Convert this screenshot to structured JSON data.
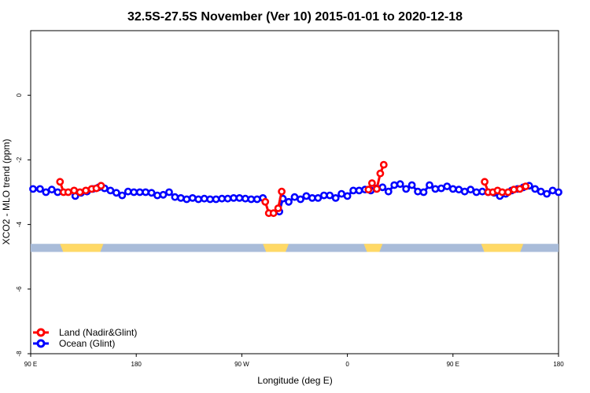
{
  "chart_data": {
    "type": "line",
    "title": "32.5S-27.5S November (Ver 10)   2015-01-01 to 2020-12-18",
    "xlabel": "Longitude (deg E)",
    "ylabel": "XCO2 - MLO trend (ppm)",
    "x_ticks": [
      {
        "value": 90,
        "label": "90 E"
      },
      {
        "value": 180,
        "label": "180"
      },
      {
        "value": 270,
        "label": "90 W"
      },
      {
        "value": 360,
        "label": "0"
      },
      {
        "value": 450,
        "label": "90 E"
      },
      {
        "value": 540,
        "label": "180"
      }
    ],
    "y_ticks": [
      {
        "value": 0,
        "label": "0"
      },
      {
        "value": -2,
        "label": "-2"
      },
      {
        "value": -4,
        "label": "-4"
      },
      {
        "value": -6,
        "label": "-6"
      },
      {
        "value": -8,
        "label": "-8"
      }
    ],
    "xlim": [
      90,
      540
    ],
    "ylim": [
      -8,
      2
    ],
    "grid": false,
    "legend_position": "bottom-left",
    "colors": {
      "land": "#ff0000",
      "ocean": "#0000ff",
      "land_mask": "#ffd966",
      "ocean_mask": "#a9bcd9"
    },
    "series": [
      {
        "name": "Land (Nadir&Glint)",
        "segments": [
          [
            [
              115,
              -2.68
            ],
            [
              118,
              -3.0
            ],
            [
              122,
              -3.0
            ],
            [
              127,
              -2.95
            ],
            [
              132,
              -3.0
            ],
            [
              137,
              -2.95
            ],
            [
              142,
              -2.9
            ],
            [
              146,
              -2.88
            ],
            [
              150,
              -2.8
            ]
          ],
          [
            [
              290,
              -3.3
            ],
            [
              293,
              -3.65
            ],
            [
              297,
              -3.65
            ],
            [
              301,
              -3.5
            ],
            [
              304,
              -2.98
            ]
          ],
          [
            [
              378,
              -2.92
            ],
            [
              381,
              -2.72
            ],
            [
              385,
              -2.9
            ],
            [
              388,
              -2.42
            ],
            [
              391,
              -2.15
            ]
          ],
          [
            [
              477,
              -2.68
            ],
            [
              480,
              -3.0
            ],
            [
              484,
              -3.0
            ],
            [
              488,
              -2.95
            ],
            [
              492,
              -3.0
            ],
            [
              497,
              -3.0
            ],
            [
              502,
              -2.92
            ],
            [
              507,
              -2.9
            ],
            [
              512,
              -2.82
            ]
          ]
        ]
      },
      {
        "name": "Ocean (Glint)",
        "segments": [
          [
            [
              92,
              -2.9
            ],
            [
              98,
              -2.9
            ],
            [
              103,
              -3.0
            ],
            [
              108,
              -2.92
            ],
            [
              113,
              -3.0
            ]
          ],
          [
            [
              128,
              -3.12
            ],
            [
              133,
              -3.02
            ],
            [
              138,
              -2.98
            ],
            [
              143,
              -2.9
            ],
            [
              148,
              -2.85
            ],
            [
              153,
              -2.88
            ],
            [
              158,
              -2.95
            ],
            [
              163,
              -3.02
            ],
            [
              168,
              -3.1
            ],
            [
              173,
              -2.98
            ],
            [
              178,
              -3.0
            ],
            [
              183,
              -3.0
            ],
            [
              188,
              -3.0
            ],
            [
              193,
              -3.02
            ],
            [
              198,
              -3.1
            ],
            [
              203,
              -3.08
            ],
            [
              208,
              -3.0
            ],
            [
              213,
              -3.15
            ],
            [
              218,
              -3.18
            ],
            [
              223,
              -3.22
            ],
            [
              228,
              -3.18
            ],
            [
              233,
              -3.22
            ],
            [
              238,
              -3.2
            ],
            [
              243,
              -3.22
            ],
            [
              248,
              -3.22
            ],
            [
              253,
              -3.2
            ],
            [
              258,
              -3.2
            ],
            [
              263,
              -3.18
            ],
            [
              268,
              -3.18
            ],
            [
              273,
              -3.2
            ],
            [
              278,
              -3.22
            ],
            [
              283,
              -3.22
            ],
            [
              288,
              -3.18
            ]
          ],
          [
            [
              302,
              -3.6
            ],
            [
              305,
              -3.2
            ],
            [
              310,
              -3.3
            ],
            [
              315,
              -3.15
            ],
            [
              320,
              -3.22
            ],
            [
              325,
              -3.12
            ],
            [
              330,
              -3.18
            ],
            [
              335,
              -3.18
            ],
            [
              340,
              -3.1
            ],
            [
              345,
              -3.1
            ],
            [
              350,
              -3.18
            ],
            [
              355,
              -3.05
            ],
            [
              360,
              -3.12
            ],
            [
              365,
              -2.95
            ],
            [
              370,
              -2.95
            ],
            [
              375,
              -2.92
            ],
            [
              380,
              -2.95
            ],
            [
              385,
              -2.88
            ],
            [
              390,
              -2.85
            ],
            [
              395,
              -2.98
            ],
            [
              400,
              -2.78
            ],
            [
              405,
              -2.75
            ],
            [
              410,
              -2.9
            ],
            [
              415,
              -2.78
            ],
            [
              420,
              -2.98
            ],
            [
              425,
              -3.0
            ],
            [
              430,
              -2.78
            ],
            [
              435,
              -2.9
            ],
            [
              440,
              -2.88
            ],
            [
              445,
              -2.82
            ],
            [
              450,
              -2.9
            ],
            [
              455,
              -2.92
            ],
            [
              460,
              -2.98
            ],
            [
              465,
              -2.92
            ],
            [
              470,
              -3.0
            ],
            [
              475,
              -2.98
            ],
            [
              480,
              -3.0
            ],
            [
              485,
              -3.02
            ],
            [
              490,
              -3.12
            ],
            [
              495,
              -3.05
            ],
            [
              500,
              -2.95
            ],
            [
              505,
              -2.9
            ],
            [
              510,
              -2.85
            ],
            [
              515,
              -2.8
            ],
            [
              520,
              -2.9
            ],
            [
              525,
              -2.98
            ],
            [
              530,
              -3.05
            ],
            [
              535,
              -2.95
            ],
            [
              540,
              -3.0
            ]
          ]
        ]
      }
    ],
    "land_ocean_strip": {
      "y_range": [
        -4.85,
        -4.6
      ],
      "land_intervals": [
        [
          115,
          152
        ],
        [
          288,
          310
        ],
        [
          374,
          390
        ],
        [
          474,
          510
        ]
      ]
    }
  }
}
